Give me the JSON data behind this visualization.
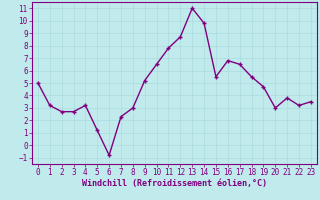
{
  "x": [
    0,
    1,
    2,
    3,
    4,
    5,
    6,
    7,
    8,
    9,
    10,
    11,
    12,
    13,
    14,
    15,
    16,
    17,
    18,
    19,
    20,
    21,
    22,
    23
  ],
  "y": [
    5.0,
    3.2,
    2.7,
    2.7,
    3.2,
    1.2,
    -0.8,
    2.3,
    3.0,
    5.2,
    6.5,
    7.8,
    8.7,
    11.0,
    9.8,
    5.5,
    6.8,
    6.5,
    5.5,
    4.7,
    3.0,
    3.8,
    3.2,
    3.5
  ],
  "line_color": "#800080",
  "marker": "+",
  "background_color": "#c0eaec",
  "grid_color": "#aadddd",
  "xlabel": "Windchill (Refroidissement éolien,°C)",
  "xlabel_color": "#800080",
  "tick_color": "#800080",
  "spine_color": "#800080",
  "ylim": [
    -1.5,
    11.5
  ],
  "xlim": [
    -0.5,
    23.5
  ],
  "yticks": [
    -1,
    0,
    1,
    2,
    3,
    4,
    5,
    6,
    7,
    8,
    9,
    10,
    11
  ],
  "xticks": [
    0,
    1,
    2,
    3,
    4,
    5,
    6,
    7,
    8,
    9,
    10,
    11,
    12,
    13,
    14,
    15,
    16,
    17,
    18,
    19,
    20,
    21,
    22,
    23
  ],
  "linewidth": 1.0,
  "markersize": 3,
  "tick_fontsize": 5.5,
  "xlabel_fontsize": 6.0
}
